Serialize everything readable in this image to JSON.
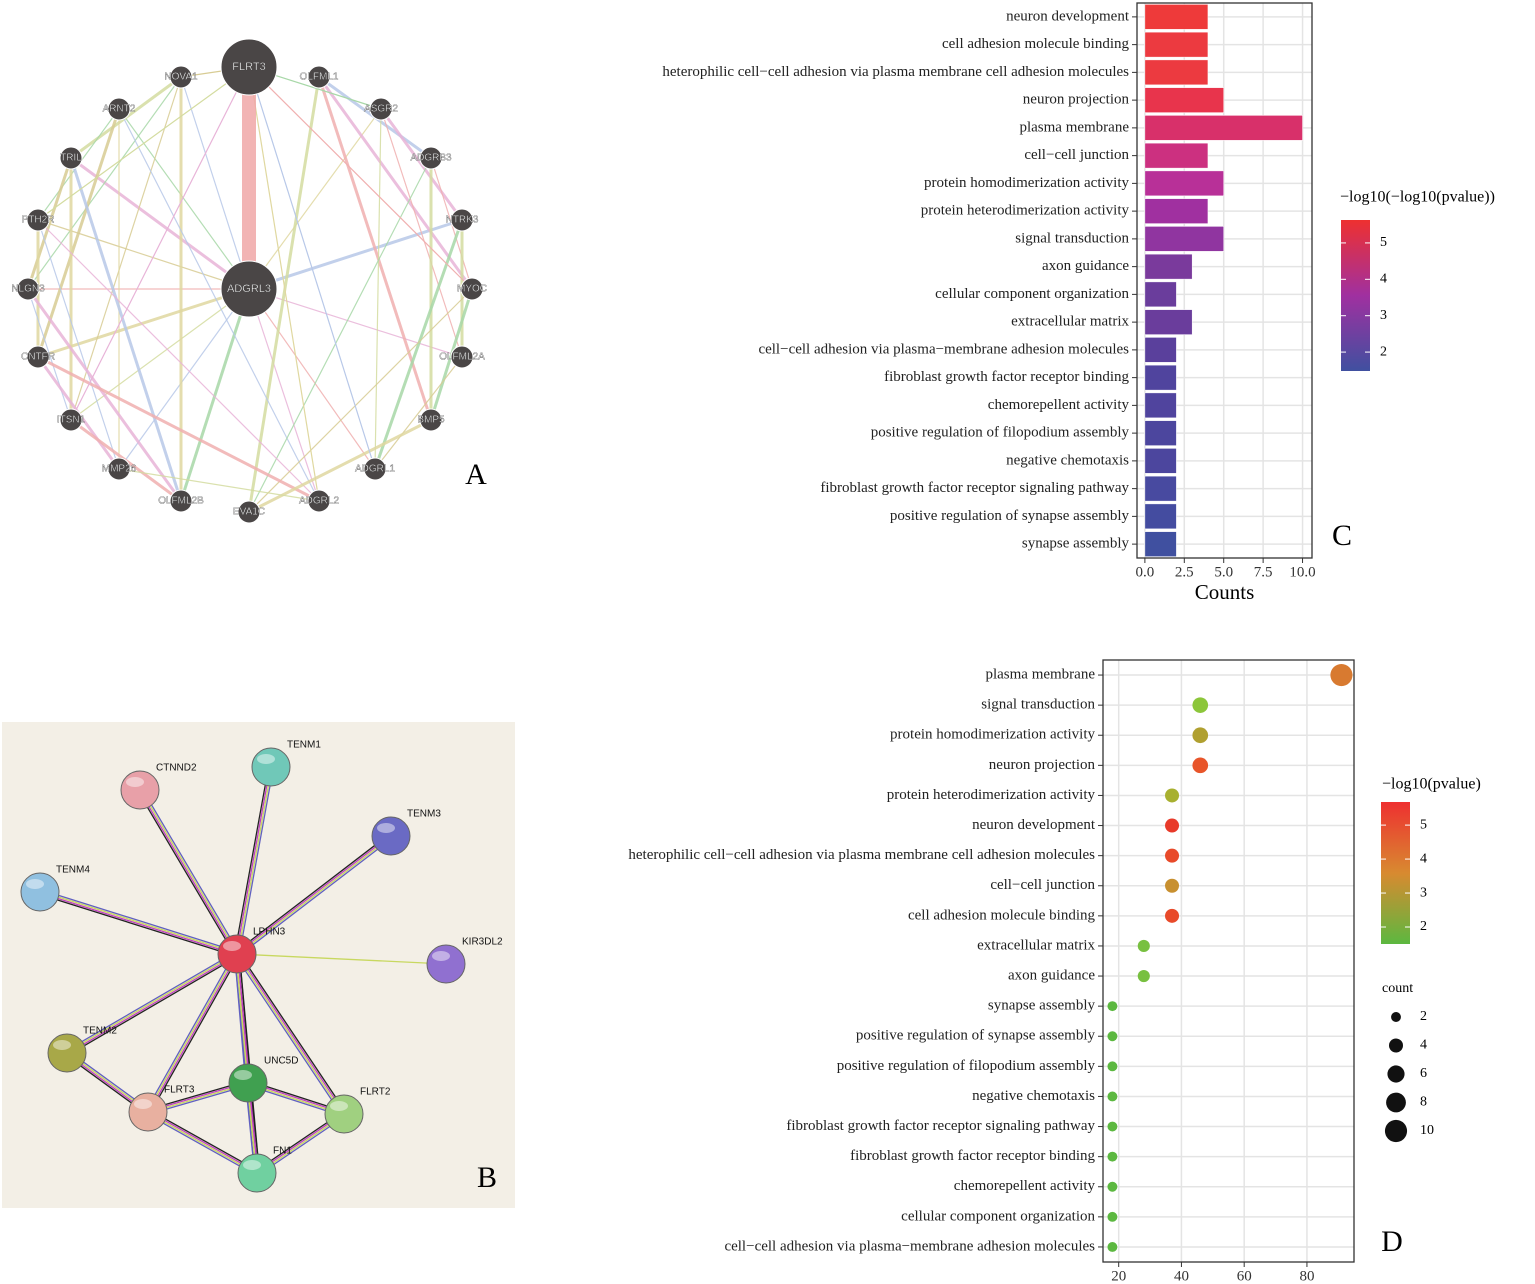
{
  "networks": {
    "A": {
      "label": "A",
      "nodes": [
        "FLRT3",
        "ADGRL3",
        "NOVA1",
        "OLFML1",
        "ARNT2",
        "ASGR2",
        "TRIL",
        "ADGRB3",
        "PTH2R",
        "NTRK3",
        "NLGN3",
        "MYOC",
        "CNTFR",
        "OLFML2A",
        "ITSN1",
        "BMP5",
        "MMP26",
        "ADGRL1",
        "OLFML2B",
        "EVA1C",
        "ADGRL2"
      ]
    },
    "B": {
      "label": "B",
      "nodes": [
        "CTNND2",
        "TENM1",
        "TENM3",
        "TENM4",
        "LPHN3",
        "KIR3DL2",
        "TENM2",
        "UNC5D",
        "FLRT3",
        "FLRT2",
        "FN1"
      ]
    }
  },
  "chart_data": [
    {
      "type": "bar",
      "label": "C",
      "xlabel": "Counts",
      "categories": [
        "neuron development",
        "cell adhesion molecule binding",
        "heterophilic cell−cell adhesion via plasma membrane cell adhesion molecules",
        "neuron projection",
        "plasma membrane",
        "cell−cell junction",
        "protein homodimerization activity",
        "protein heterodimerization activity",
        "signal transduction",
        "axon guidance",
        "cellular component organization",
        "extracellular matrix",
        "cell−cell adhesion via plasma−membrane adhesion molecules",
        "fibroblast growth factor receptor binding",
        "chemorepellent activity",
        "positive regulation of filopodium assembly",
        "negative chemotaxis",
        "fibroblast growth factor receptor signaling pathway",
        "positive regulation of synapse assembly",
        "synapse assembly"
      ],
      "values": [
        4,
        4,
        4,
        5,
        10,
        4,
        5,
        4,
        5,
        3,
        2,
        3,
        2,
        2,
        2,
        2,
        2,
        2,
        2,
        2
      ],
      "colors": [
        "#ee3a3a",
        "#ec3a40",
        "#ec3a40",
        "#e8344c",
        "#d8306a",
        "#cc3080",
        "#b83098",
        "#a030a0",
        "#9035a0",
        "#7a3a9c",
        "#6a3d9c",
        "#6a3d9c",
        "#5a409c",
        "#50449e",
        "#50449e",
        "#4c469e",
        "#4c469e",
        "#484aa0",
        "#444ca0",
        "#4050a0"
      ],
      "xlim": [
        -0.5,
        10.6
      ],
      "xticks": [
        {
          "value": 0,
          "label": "0.0"
        },
        2.5,
        {
          "value": 5,
          "label": "5.0"
        },
        7.5,
        {
          "value": 10,
          "label": "10.0"
        }
      ],
      "grid": true,
      "colorbar": {
        "title": "−log10(−log10(pvalue))",
        "lim": [
          1.48,
          5.63
        ],
        "ticks": [
          2,
          3,
          4,
          5
        ],
        "colors": [
          "#4050a0",
          "#a030a0",
          "#ee3030"
        ]
      }
    },
    {
      "type": "scatter",
      "label": "D",
      "categories": [
        "plasma membrane",
        "signal transduction",
        "protein homodimerization activity",
        "neuron projection",
        "protein heterodimerization activity",
        "neuron development",
        "heterophilic cell−cell adhesion via plasma membrane cell adhesion molecules",
        "cell−cell junction",
        "cell adhesion molecule binding",
        "extracellular matrix",
        "axon guidance",
        "synapse assembly",
        "positive regulation of synapse assembly",
        "positive regulation of filopodium assembly",
        "negative chemotaxis",
        "fibroblast growth factor receptor signaling pathway",
        "fibroblast growth factor receptor binding",
        "chemorepellent activity",
        "cellular component organization",
        "cell−cell adhesion via plasma−membrane adhesion molecules"
      ],
      "values": [
        91,
        46,
        46,
        46,
        37,
        37,
        37,
        37,
        37,
        28,
        28,
        18,
        18,
        18,
        18,
        18,
        18,
        18,
        18,
        18
      ],
      "sizes": [
        10,
        5,
        5,
        5,
        4,
        4,
        4,
        4,
        4,
        3,
        3,
        2,
        2,
        2,
        2,
        2,
        2,
        2,
        2,
        2
      ],
      "colors": [
        "#d87a30",
        "#8cc63a",
        "#b0a030",
        "#e8552a",
        "#a8b030",
        "#e83a2a",
        "#e84a2a",
        "#c89030",
        "#e84a2a",
        "#78c040",
        "#78c040",
        "#5cb840",
        "#5cb840",
        "#5cb840",
        "#5cb840",
        "#5cb840",
        "#5cb840",
        "#5cb840",
        "#5cb840",
        "#5cb840"
      ],
      "xlim": [
        15,
        95
      ],
      "xticks": [
        20,
        40,
        60,
        80
      ],
      "grid": true,
      "colorbar": {
        "title": "−log10(pvalue)",
        "lim": [
          1.5,
          5.68
        ],
        "ticks": [
          2,
          3,
          4,
          5
        ],
        "colors": [
          "#5cb840",
          "#d88a30",
          "#ee3030"
        ]
      },
      "size_legend": {
        "title": "count",
        "values": [
          2,
          4,
          6,
          8,
          10
        ]
      }
    }
  ]
}
